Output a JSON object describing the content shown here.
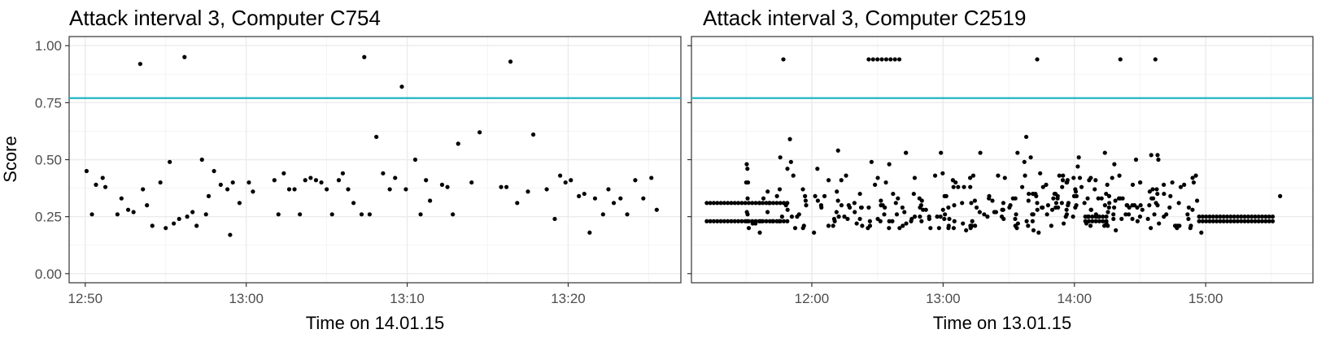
{
  "figure": {
    "ylabel": "Score",
    "threshold_color": "#1fb5c4",
    "point_color": "#000000"
  },
  "chart_data": [
    {
      "type": "scatter",
      "title": "Attack interval 3, Computer C754",
      "xlabel": "Time on 14.01.15",
      "ylabel": "Score",
      "x_unit": "clock time (HH:MM)",
      "xlim": [
        "12:49",
        "13:27"
      ],
      "ylim": [
        -0.04,
        1.04
      ],
      "x_ticks": [
        "12:50",
        "13:00",
        "13:10",
        "13:20"
      ],
      "y_ticks": [
        "0.00",
        "0.25",
        "0.50",
        "0.75",
        "1.00"
      ],
      "threshold": 0.77,
      "grid": true,
      "points": [
        [
          "12:50:05",
          0.45
        ],
        [
          "12:50:25",
          0.26
        ],
        [
          "12:50:40",
          0.39
        ],
        [
          "12:51:05",
          0.42
        ],
        [
          "12:51:15",
          0.38
        ],
        [
          "12:52:00",
          0.26
        ],
        [
          "12:52:15",
          0.33
        ],
        [
          "12:52:40",
          0.28
        ],
        [
          "12:53:00",
          0.27
        ],
        [
          "12:53:25",
          0.92
        ],
        [
          "12:53:35",
          0.37
        ],
        [
          "12:53:50",
          0.3
        ],
        [
          "12:54:10",
          0.21
        ],
        [
          "12:54:40",
          0.4
        ],
        [
          "12:55:00",
          0.2
        ],
        [
          "12:55:15",
          0.49
        ],
        [
          "12:55:30",
          0.22
        ],
        [
          "12:55:50",
          0.24
        ],
        [
          "12:56:10",
          0.95
        ],
        [
          "12:56:20",
          0.25
        ],
        [
          "12:56:40",
          0.27
        ],
        [
          "12:56:55",
          0.21
        ],
        [
          "12:57:15",
          0.5
        ],
        [
          "12:57:40",
          0.34
        ],
        [
          "12:58:00",
          0.45
        ],
        [
          "12:58:25",
          0.39
        ],
        [
          "12:58:50",
          0.37
        ],
        [
          "12:59:10",
          0.4
        ],
        [
          "12:59:35",
          0.31
        ],
        [
          "12:59:00",
          0.17
        ],
        [
          "12:57:30",
          0.26
        ],
        [
          "13:00:10",
          0.4
        ],
        [
          "13:00:25",
          0.36
        ],
        [
          "13:01:45",
          0.41
        ],
        [
          "13:02:00",
          0.26
        ],
        [
          "13:02:20",
          0.44
        ],
        [
          "13:02:40",
          0.37
        ],
        [
          "13:03:00",
          0.37
        ],
        [
          "13:03:20",
          0.26
        ],
        [
          "13:03:40",
          0.41
        ],
        [
          "13:04:00",
          0.42
        ],
        [
          "13:04:20",
          0.41
        ],
        [
          "13:04:40",
          0.4
        ],
        [
          "13:05:00",
          0.37
        ],
        [
          "13:05:20",
          0.26
        ],
        [
          "13:05:45",
          0.41
        ],
        [
          "13:06:00",
          0.44
        ],
        [
          "13:06:20",
          0.37
        ],
        [
          "13:06:40",
          0.31
        ],
        [
          "13:07:10",
          0.26
        ],
        [
          "13:07:20",
          0.95
        ],
        [
          "13:07:40",
          0.26
        ],
        [
          "13:08:05",
          0.6
        ],
        [
          "13:08:30",
          0.44
        ],
        [
          "13:08:55",
          0.37
        ],
        [
          "13:09:15",
          0.42
        ],
        [
          "13:09:40",
          0.82
        ],
        [
          "13:09:55",
          0.37
        ],
        [
          "13:10:30",
          0.5
        ],
        [
          "13:10:50",
          0.26
        ],
        [
          "13:11:10",
          0.41
        ],
        [
          "13:11:25",
          0.32
        ],
        [
          "13:12:10",
          0.39
        ],
        [
          "13:12:30",
          0.38
        ],
        [
          "13:12:50",
          0.26
        ],
        [
          "13:13:10",
          0.57
        ],
        [
          "13:14:00",
          0.4
        ],
        [
          "13:14:30",
          0.62
        ],
        [
          "13:15:50",
          0.38
        ],
        [
          "13:16:10",
          0.38
        ],
        [
          "13:16:25",
          0.93
        ],
        [
          "13:16:50",
          0.31
        ],
        [
          "13:17:30",
          0.36
        ],
        [
          "13:17:50",
          0.61
        ],
        [
          "13:18:40",
          0.37
        ],
        [
          "13:19:10",
          0.24
        ],
        [
          "13:19:30",
          0.43
        ],
        [
          "13:19:50",
          0.4
        ],
        [
          "13:20:10",
          0.41
        ],
        [
          "13:20:40",
          0.34
        ],
        [
          "13:21:00",
          0.35
        ],
        [
          "13:21:20",
          0.18
        ],
        [
          "13:21:40",
          0.33
        ],
        [
          "13:22:10",
          0.26
        ],
        [
          "13:22:30",
          0.37
        ],
        [
          "13:22:50",
          0.31
        ],
        [
          "13:23:15",
          0.33
        ],
        [
          "13:23:40",
          0.26
        ],
        [
          "13:24:10",
          0.41
        ],
        [
          "13:24:40",
          0.33
        ],
        [
          "13:25:10",
          0.42
        ],
        [
          "13:25:30",
          0.28
        ]
      ]
    },
    {
      "type": "scatter",
      "title": "Attack interval 3, Computer C2519",
      "xlabel": "Time on 13.01.15",
      "x_unit": "clock time (HH:MM)",
      "xlim": [
        "11:05",
        "15:49"
      ],
      "ylim": [
        -0.04,
        1.04
      ],
      "x_ticks": [
        "12:00",
        "13:00",
        "14:00",
        "15:00"
      ],
      "threshold": 0.77,
      "grid": true,
      "points": []
    }
  ]
}
